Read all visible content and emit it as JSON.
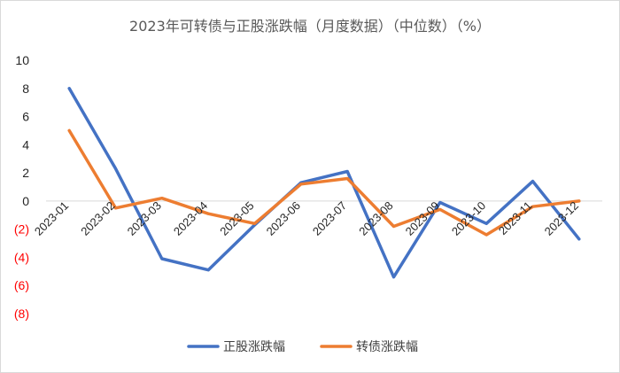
{
  "chart_data": {
    "type": "line",
    "title": "2023年可转债与正股涨跌幅（月度数据）（中位数）（%）",
    "xlabel": "",
    "ylabel": "",
    "categories": [
      "2023-01",
      "2023-02",
      "2023-03",
      "2023-04",
      "2023-05",
      "2023-06",
      "2023-07",
      "2023-08",
      "2023-09",
      "2023-10",
      "2023-11",
      "2023-12"
    ],
    "series": [
      {
        "name": "正股涨跌幅",
        "color": "#4472C4",
        "values": [
          8.0,
          2.3,
          -4.1,
          -4.9,
          -1.7,
          1.3,
          2.1,
          -5.4,
          -0.1,
          -1.6,
          1.4,
          -2.7
        ]
      },
      {
        "name": "转债涨跌幅",
        "color": "#ED7D31",
        "values": [
          5.0,
          -0.5,
          0.2,
          -0.9,
          -1.6,
          1.2,
          1.6,
          -1.8,
          -0.6,
          -2.4,
          -0.4,
          0.0
        ]
      }
    ],
    "ylim": [
      -8,
      10
    ],
    "yticks": [
      {
        "value": 10,
        "label": "10"
      },
      {
        "value": 8,
        "label": "8"
      },
      {
        "value": 6,
        "label": "6"
      },
      {
        "value": 4,
        "label": "4"
      },
      {
        "value": 2,
        "label": "2"
      },
      {
        "value": 0,
        "label": "0"
      },
      {
        "value": -2,
        "label": "(2)"
      },
      {
        "value": -4,
        "label": "(4)"
      },
      {
        "value": -6,
        "label": "(6)"
      },
      {
        "value": -8,
        "label": "(8)"
      }
    ],
    "positive_tick_color": "#262626",
    "negative_tick_color": "#FF0000",
    "grid": false,
    "legend_position": "bottom"
  }
}
